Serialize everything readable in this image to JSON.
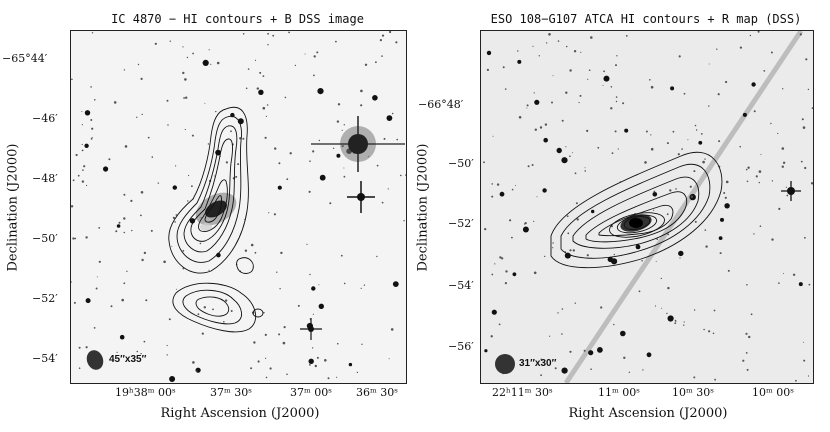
{
  "left_panel": {
    "title": "IC 4870 − HI contours + B DSS image",
    "ylabel": "Declination (J2000)",
    "xlabel": "Right Ascension (J2000)",
    "yticks": [
      "−65°44′",
      "−46′",
      "−48′",
      "−50′",
      "−52′",
      "−54′"
    ],
    "xticks": [
      "19ʰ38ᵐ 00ˢ",
      "37ᵐ 30ˢ",
      "37ᵐ 00ˢ",
      "36ᵐ 30ˢ"
    ],
    "beam": "45″x35″"
  },
  "right_panel": {
    "title": "ESO 108−G107 ATCA HI contours + R map (DSS)",
    "ylabel": "Declination (J2000)",
    "xlabel": "Right Ascension (J2000)",
    "yticks": [
      "−66°48′",
      "−50′",
      "−52′",
      "−54′",
      "−56′"
    ],
    "xticks": [
      "22ʰ11ᵐ 30ˢ",
      "11ᵐ 00ˢ",
      "10ᵐ 30ˢ",
      "10ᵐ 00ˢ"
    ],
    "beam": "31″x30″"
  }
}
